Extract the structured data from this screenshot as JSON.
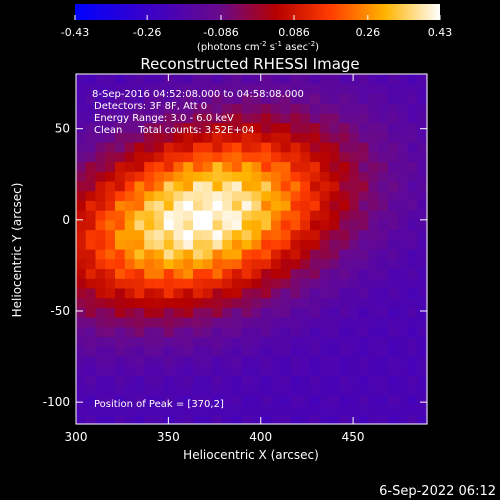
{
  "chart_data": {
    "type": "heatmap",
    "title": "Reconstructed RHESSI Image",
    "xlabel": "Heliocentric X (arcsec)",
    "ylabel": "Heliocentric Y (arcsec)",
    "xlim": [
      300,
      490
    ],
    "ylim": [
      -112,
      80
    ],
    "x_ticks": [
      "300",
      "350",
      "400",
      "450"
    ],
    "x_tick_values": [
      300,
      350,
      400,
      450
    ],
    "y_ticks": [
      "50",
      "0",
      "-50",
      "-100"
    ],
    "y_tick_values": [
      50,
      0,
      -50,
      -100
    ],
    "colorbar": {
      "min": -0.43,
      "max": 0.43,
      "tick_labels": [
        "-0.43",
        "-0.26",
        "-0.086",
        "0.086",
        "0.26",
        "0.43"
      ],
      "units_label": "(photons cm",
      "units_sup1": "-2",
      "units_mid": " s",
      "units_sup2": "-1",
      "units_mid2": " asec",
      "units_sup3": "-2",
      "units_end": ")"
    },
    "annotations": [
      "8-Sep-2016 04:52:08.000 to 04:58:08.000",
      "Detectors: 3F 8F, Att 0",
      "Energy Range: 3.0 - 6.0 keV",
      "Clean     Total counts: 3.52E+04"
    ],
    "peak_label": "Position of Peak = [370,2]",
    "peak": {
      "x": 370,
      "y": 2,
      "value": 0.43
    },
    "source": {
      "x_center": 368,
      "y_center": 2,
      "sigma_x": 55,
      "sigma_y": 32,
      "tilt_deg": 18,
      "bottom_value": -0.2
    },
    "grid": false,
    "timestamp": "6-Sep-2022 06:12"
  }
}
